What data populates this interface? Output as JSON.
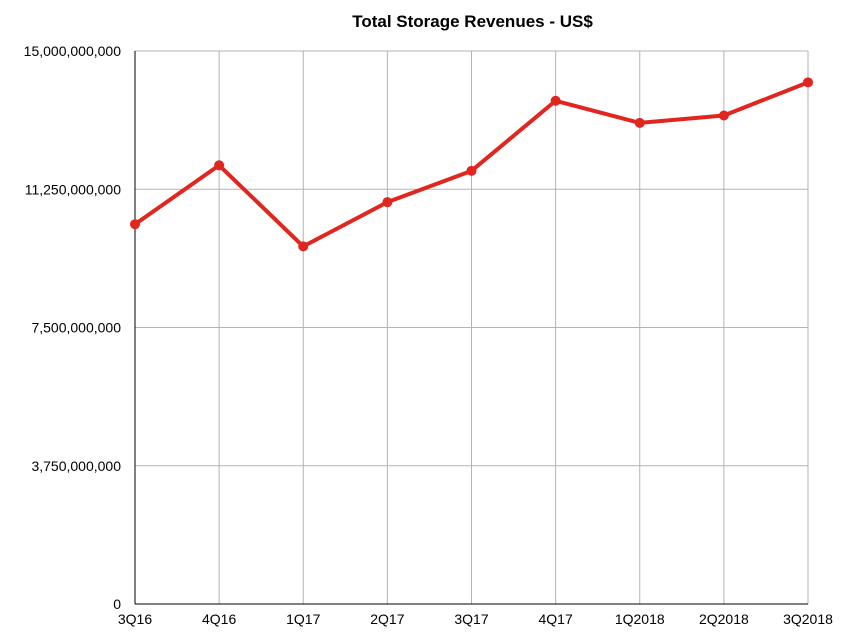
{
  "chart_data": {
    "type": "line",
    "title": "Total Storage Revenues - US$",
    "xlabel": "",
    "ylabel": "",
    "categories": [
      "3Q16",
      "4Q16",
      "1Q17",
      "2Q17",
      "3Q17",
      "4Q17",
      "1Q2018",
      "2Q2018",
      "3Q2018"
    ],
    "series": [
      {
        "values": [
          10300000000,
          11900000000,
          9700000000,
          10900000000,
          11750000000,
          13650000000,
          13050000000,
          13250000000,
          14150000000
        ],
        "color": "#e0261e"
      }
    ],
    "ylim": [
      0,
      15000000000
    ],
    "yticks": [
      0,
      3750000000,
      7500000000,
      11250000000,
      15000000000
    ],
    "ytick_labels": [
      "0",
      "3,750,000,000",
      "7,500,000,000",
      "11,250,000,000",
      "15,000,000,000"
    ],
    "grid": true,
    "legend": "none"
  },
  "colors": {
    "line": "#e0261e",
    "grid": "#b3b3b3",
    "axis": "#000000"
  }
}
